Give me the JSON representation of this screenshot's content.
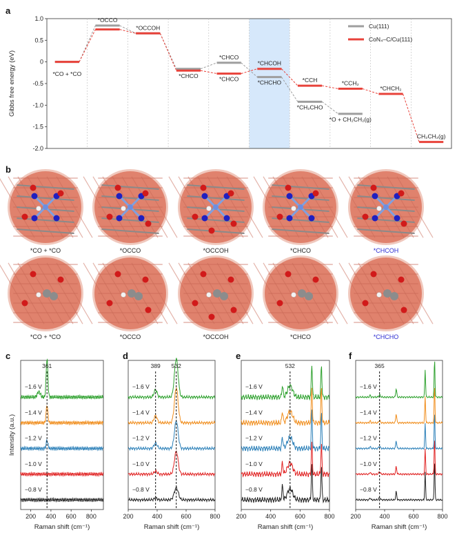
{
  "panels": {
    "a": "a",
    "b": "b",
    "c": "c",
    "d": "d",
    "e": "e",
    "f": "f"
  },
  "colors": {
    "cu": "#9e9e9e",
    "con4": "#e8423a",
    "highlight": "#d6e8fb",
    "c_blue": "#2b2bd0",
    "spec_colors": [
      "#222222",
      "#e02020",
      "#2a7fb8",
      "#f08c1a",
      "#2ca02c"
    ]
  },
  "chart_data": [
    {
      "id": "a",
      "type": "line",
      "chart_style": "free-energy step diagram",
      "ylabel": "Gibbs free energy (eV)",
      "ylim": [
        -2.0,
        1.0
      ],
      "yticks": [
        "1.0",
        "0.5",
        "0",
        "-0.5",
        "-1.0",
        "-1.5",
        "-2.0"
      ],
      "highlight_column": 6,
      "legend": [
        {
          "name": "Cu(111)",
          "color": "#9e9e9e"
        },
        {
          "name": "CoN₄–C/Cu(111)",
          "color": "#e8423a"
        }
      ],
      "series": [
        {
          "name": "Cu(111)",
          "steps": [
            {
              "col": 1,
              "y": 0.0
            },
            {
              "col": 2,
              "y": 0.84
            },
            {
              "col": 3,
              "y": 0.66
            },
            {
              "col": 4,
              "y": -0.16
            },
            {
              "col": 5,
              "y": -0.02
            },
            {
              "col": 6,
              "y": -0.35
            },
            {
              "col": 7,
              "y": -0.92
            },
            {
              "col": 8,
              "y": -1.2
            }
          ]
        },
        {
          "name": "CoN₄–C/Cu(111)",
          "steps": [
            {
              "col": 1,
              "y": 0.0
            },
            {
              "col": 2,
              "y": 0.75
            },
            {
              "col": 3,
              "y": 0.66
            },
            {
              "col": 4,
              "y": -0.2
            },
            {
              "col": 5,
              "y": -0.27
            },
            {
              "col": 6,
              "y": -0.16
            },
            {
              "col": 7,
              "y": -0.55
            },
            {
              "col": 8,
              "y": -0.62
            },
            {
              "col": 9,
              "y": -0.74
            },
            {
              "col": 10,
              "y": -1.85
            }
          ]
        }
      ],
      "labels": [
        {
          "text": "*CO + *CO",
          "col": 1,
          "y": -0.15,
          "pos": "below"
        },
        {
          "text": "*OCCO",
          "col": 2,
          "y": 0.84,
          "pos": "above"
        },
        {
          "text": "*OCCOH",
          "col": 3,
          "y": 0.66,
          "pos": "above"
        },
        {
          "text": "*CHCO",
          "col": 4,
          "y": -0.2,
          "pos": "below"
        },
        {
          "text": "*CHCO",
          "col": 5,
          "y": -0.02,
          "pos": "above"
        },
        {
          "text": "*CHCO",
          "col": 5,
          "y": -0.27,
          "pos": "below"
        },
        {
          "text": "*CHCOH",
          "col": 6,
          "y": -0.16,
          "pos": "above"
        },
        {
          "text": "*CHCHO",
          "col": 6,
          "y": -0.35,
          "pos": "below"
        },
        {
          "text": "*CCH",
          "col": 7,
          "y": -0.55,
          "pos": "above"
        },
        {
          "text": "*CH₂CHO",
          "col": 7,
          "y": -0.92,
          "pos": "below"
        },
        {
          "text": "*CCH₂",
          "col": 8,
          "y": -0.62,
          "pos": "above"
        },
        {
          "text": "*O + CH₂CH₂(g)",
          "col": 8,
          "y": -1.2,
          "pos": "below"
        },
        {
          "text": "*CHCH₂",
          "col": 9,
          "y": -0.74,
          "pos": "above"
        },
        {
          "text": "CH₂CH₂(g)",
          "col": 10,
          "y": -1.85,
          "pos": "above"
        }
      ]
    },
    {
      "id": "c",
      "type": "line",
      "xlabel": "Raman shift (cm⁻¹)",
      "ylabel": "Intensity (a.u.)",
      "xlim": [
        100,
        920
      ],
      "xticks": [
        200,
        400,
        600,
        800
      ],
      "peak_marker": 361,
      "peak_label": "361",
      "series": [
        {
          "name": "−0.8 V",
          "peaks": []
        },
        {
          "name": "−1.0 V",
          "peaks": []
        },
        {
          "name": "−1.2 V",
          "peaks": [
            [
              361,
              0.5,
              12
            ]
          ]
        },
        {
          "name": "−1.4 V",
          "peaks": [
            [
              361,
              1.1,
              12
            ]
          ]
        },
        {
          "name": "−1.6 V",
          "peaks": [
            [
              280,
              0.35,
              20
            ],
            [
              361,
              2.4,
              12
            ]
          ]
        }
      ]
    },
    {
      "id": "d",
      "type": "line",
      "xlabel": "Raman shift (cm⁻¹)",
      "ylabel": "",
      "xlim": [
        200,
        800
      ],
      "xticks": [
        200,
        400,
        600,
        800
      ],
      "peak_marker": [
        389,
        532
      ],
      "peak_label": [
        "389",
        "532"
      ],
      "series": [
        {
          "name": "−0.8 V",
          "peaks": [
            [
              389,
              0.15,
              15
            ],
            [
              532,
              1.0,
              20
            ]
          ]
        },
        {
          "name": "−1.0 V",
          "peaks": [
            [
              389,
              0.25,
              15
            ],
            [
              532,
              1.9,
              18
            ]
          ]
        },
        {
          "name": "−1.2 V",
          "peaks": [
            [
              389,
              0.45,
              15
            ],
            [
              532,
              2.3,
              18
            ]
          ]
        },
        {
          "name": "−1.4 V",
          "peaks": [
            [
              389,
              0.6,
              15
            ],
            [
              532,
              2.9,
              18
            ]
          ]
        },
        {
          "name": "−1.6 V",
          "peaks": [
            [
              389,
              0.6,
              15
            ],
            [
              532,
              3.2,
              18
            ]
          ]
        }
      ]
    },
    {
      "id": "e",
      "type": "line",
      "xlabel": "Raman shift (cm⁻¹)",
      "ylabel": "",
      "xlim": [
        200,
        800
      ],
      "xticks": [
        200,
        400,
        600,
        800
      ],
      "peak_marker": 532,
      "peak_label": "532",
      "series": [
        {
          "name": "−0.8 V",
          "peaks": [
            [
              480,
              0.6,
              6
            ],
            [
              532,
              0.5,
              25
            ],
            [
              680,
              1.6,
              5
            ],
            [
              745,
              1.5,
              5
            ]
          ]
        },
        {
          "name": "−1.0 V",
          "peaks": [
            [
              480,
              0.5,
              6
            ],
            [
              532,
              0.5,
              25
            ],
            [
              680,
              1.4,
              5
            ],
            [
              745,
              1.3,
              5
            ]
          ]
        },
        {
          "name": "−1.2 V",
          "peaks": [
            [
              480,
              0.5,
              6
            ],
            [
              532,
              0.5,
              25
            ],
            [
              680,
              1.7,
              5
            ],
            [
              745,
              1.5,
              5
            ]
          ]
        },
        {
          "name": "−1.4 V",
          "peaks": [
            [
              480,
              0.5,
              6
            ],
            [
              532,
              0.5,
              25
            ],
            [
              680,
              1.6,
              5
            ],
            [
              745,
              1.5,
              5
            ]
          ]
        },
        {
          "name": "−1.6 V",
          "peaks": [
            [
              480,
              0.5,
              6
            ],
            [
              532,
              0.5,
              25
            ],
            [
              680,
              1.5,
              5
            ],
            [
              745,
              1.4,
              5
            ]
          ]
        }
      ]
    },
    {
      "id": "f",
      "type": "line",
      "xlabel": "Raman shift (cm⁻¹)",
      "ylabel": "",
      "xlim": [
        200,
        800
      ],
      "xticks": [
        200,
        400,
        600,
        800
      ],
      "peak_marker": 365,
      "peak_label": "365",
      "series": [
        {
          "name": "−0.8 V",
          "peaks": [
            [
              300,
              0.3,
              5
            ],
            [
              365,
              0.3,
              8
            ],
            [
              480,
              1.2,
              5
            ],
            [
              680,
              4.0,
              4
            ],
            [
              745,
              5.5,
              4
            ]
          ]
        },
        {
          "name": "−1.0 V",
          "peaks": [
            [
              300,
              0.3,
              5
            ],
            [
              365,
              0.3,
              8
            ],
            [
              480,
              1.1,
              5
            ],
            [
              680,
              3.6,
              4
            ],
            [
              745,
              5.0,
              4
            ]
          ]
        },
        {
          "name": "−1.2 V",
          "peaks": [
            [
              300,
              0.3,
              5
            ],
            [
              365,
              0.3,
              8
            ],
            [
              480,
              1.1,
              5
            ],
            [
              680,
              3.6,
              4
            ],
            [
              745,
              5.0,
              4
            ]
          ]
        },
        {
          "name": "−1.4 V",
          "peaks": [
            [
              300,
              0.3,
              5
            ],
            [
              365,
              0.3,
              8
            ],
            [
              480,
              1.3,
              5
            ],
            [
              680,
              3.8,
              4
            ],
            [
              745,
              5.2,
              4
            ]
          ]
        },
        {
          "name": "−1.6 V",
          "peaks": [
            [
              300,
              0.3,
              5
            ],
            [
              365,
              0.3,
              8
            ],
            [
              480,
              1.2,
              5
            ],
            [
              680,
              4.0,
              4
            ],
            [
              745,
              5.4,
              4
            ]
          ]
        }
      ]
    }
  ],
  "structures": {
    "row1": [
      "*CO + *CO",
      "*OCCO",
      "*OCCOH",
      "*CHCO",
      "*CHCOH"
    ],
    "row2": [
      "*CO + *CO",
      "*OCCO",
      "*OCCOH",
      "*CHCO",
      "*CHCHO"
    ],
    "highlighted": "last"
  }
}
